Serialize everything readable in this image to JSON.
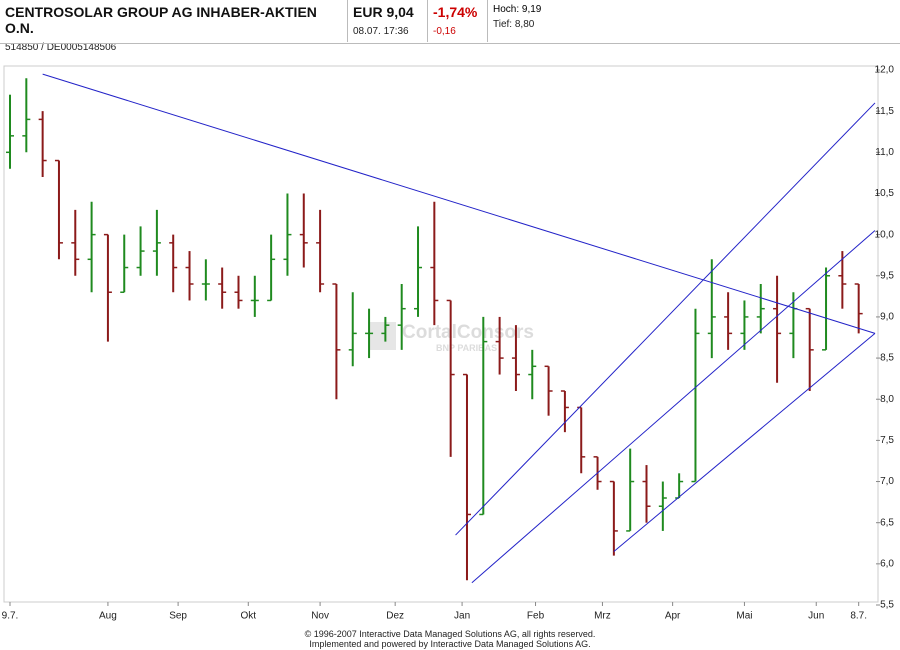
{
  "header": {
    "name": "CENTROSOLAR GROUP AG INHABER-AKTIEN O.N.",
    "ids": "514850  /  DE0005148506",
    "price": "EUR 9,04",
    "time": "08.07. 17:36",
    "change_pct": "-1,74%",
    "change": "-0,16",
    "high": "Hoch: 9,19",
    "low": "Tief: 8,80"
  },
  "watermark": {
    "brand": "CortalConsors",
    "sub": "BNP PARIBAS"
  },
  "footer": {
    "line1": "© 1996-2007 Interactive Data Managed Solutions AG, all rights reserved.",
    "line2": "Implemented and powered by Interactive Data Managed Solutions AG."
  },
  "chart_data": {
    "type": "ohlc",
    "x": [
      0,
      1,
      2,
      3,
      4,
      5,
      6,
      7,
      8,
      9,
      10,
      11,
      12,
      13,
      14,
      15,
      16,
      17,
      18,
      19,
      20,
      21,
      22,
      23,
      24,
      25,
      26,
      27,
      28,
      29,
      30,
      31,
      32,
      33,
      34,
      35,
      36,
      37,
      38,
      39,
      40,
      41,
      42,
      43,
      44,
      45,
      46,
      47,
      48,
      49,
      50,
      51,
      52
    ],
    "open": [
      11.0,
      11.2,
      11.4,
      10.9,
      9.9,
      9.7,
      10.0,
      9.3,
      9.6,
      9.8,
      9.9,
      9.6,
      9.4,
      9.4,
      9.3,
      9.2,
      9.2,
      9.7,
      10.0,
      9.9,
      9.4,
      8.6,
      8.8,
      8.8,
      8.9,
      9.1,
      9.6,
      9.2,
      8.3,
      6.6,
      8.7,
      8.5,
      8.3,
      8.4,
      8.1,
      7.9,
      7.3,
      7.0,
      6.4,
      7.0,
      6.7,
      6.8,
      7.0,
      8.8,
      9.0,
      8.8,
      9.0,
      9.1,
      8.8,
      9.1,
      8.6,
      9.5,
      9.4
    ],
    "high": [
      11.7,
      11.9,
      11.5,
      10.9,
      10.3,
      10.4,
      10.0,
      10.0,
      10.1,
      10.3,
      10.0,
      9.8,
      9.7,
      9.6,
      9.5,
      9.5,
      10.0,
      10.5,
      10.5,
      10.3,
      9.4,
      9.3,
      9.1,
      9.0,
      9.4,
      10.1,
      10.4,
      9.2,
      8.3,
      9.0,
      9.0,
      8.9,
      8.6,
      8.4,
      8.1,
      7.9,
      7.3,
      7.0,
      7.4,
      7.2,
      7.0,
      7.1,
      9.1,
      9.7,
      9.3,
      9.2,
      9.4,
      9.5,
      9.3,
      9.1,
      9.6,
      9.8,
      9.4
    ],
    "low": [
      10.8,
      11.0,
      10.7,
      9.7,
      9.5,
      9.3,
      8.7,
      9.3,
      9.5,
      9.5,
      9.3,
      9.2,
      9.2,
      9.1,
      9.1,
      9.0,
      9.2,
      9.5,
      9.6,
      9.3,
      8.0,
      8.4,
      8.5,
      8.7,
      8.6,
      9.0,
      8.9,
      7.3,
      5.8,
      6.6,
      8.3,
      8.1,
      8.0,
      7.8,
      7.6,
      7.1,
      6.9,
      6.1,
      6.4,
      6.5,
      6.4,
      6.8,
      7.0,
      8.5,
      8.6,
      8.6,
      8.8,
      8.2,
      8.5,
      8.1,
      8.6,
      9.1,
      8.8
    ],
    "close": [
      11.2,
      11.4,
      10.9,
      9.9,
      9.7,
      10.0,
      9.3,
      9.6,
      9.8,
      9.9,
      9.6,
      9.4,
      9.4,
      9.3,
      9.2,
      9.2,
      9.7,
      10.0,
      9.9,
      9.4,
      8.6,
      8.8,
      8.8,
      8.9,
      9.1,
      9.6,
      9.2,
      8.3,
      6.6,
      8.7,
      8.5,
      8.3,
      8.4,
      8.1,
      7.9,
      7.3,
      7.0,
      6.4,
      7.0,
      6.7,
      6.8,
      7.0,
      8.8,
      9.0,
      8.8,
      9.0,
      9.1,
      8.8,
      9.1,
      8.6,
      9.5,
      9.4,
      9.04
    ],
    "color_up": "#1f8a1f",
    "color_down": "#8b1a1a",
    "line_color": "#2323c8",
    "trend_lines": [
      {
        "x": [
          2,
          53
        ],
        "y": [
          11.95,
          8.8
        ]
      },
      {
        "x": [
          28.3,
          53
        ],
        "y": [
          5.77,
          10.05
        ]
      },
      {
        "x": [
          27.3,
          53
        ],
        "y": [
          6.35,
          11.6
        ]
      },
      {
        "x": [
          37,
          53
        ],
        "y": [
          6.15,
          8.8
        ]
      }
    ],
    "xlim": [
      0,
      53
    ],
    "ylim": [
      5.5,
      12.0
    ],
    "xticks": [
      {
        "value": 0,
        "label": "9.7."
      },
      {
        "value": 6.0,
        "label": "Aug"
      },
      {
        "value": 10.3,
        "label": "Sep"
      },
      {
        "value": 14.6,
        "label": "Okt"
      },
      {
        "value": 19.0,
        "label": "Nov"
      },
      {
        "value": 23.6,
        "label": "Dez"
      },
      {
        "value": 27.7,
        "label": "Jan"
      },
      {
        "value": 32.2,
        "label": "Feb"
      },
      {
        "value": 36.3,
        "label": "Mrz"
      },
      {
        "value": 40.6,
        "label": "Apr"
      },
      {
        "value": 45.0,
        "label": "Mai"
      },
      {
        "value": 49.4,
        "label": "Jun"
      },
      {
        "value": 52,
        "label": "8.7."
      }
    ],
    "yticks": [
      {
        "value": 5.5,
        "label": "5,5"
      },
      {
        "value": 6.0,
        "label": "6,0"
      },
      {
        "value": 6.5,
        "label": "6,5"
      },
      {
        "value": 7.0,
        "label": "7,0"
      },
      {
        "value": 7.5,
        "label": "7,5"
      },
      {
        "value": 8.0,
        "label": "8,0"
      },
      {
        "value": 8.5,
        "label": "8,5"
      },
      {
        "value": 9.0,
        "label": "9,0"
      },
      {
        "value": 9.5,
        "label": "9,5"
      },
      {
        "value": 10.0,
        "label": "10,0"
      },
      {
        "value": 10.5,
        "label": "10,5"
      },
      {
        "value": 11.0,
        "label": "11,0"
      },
      {
        "value": 11.5,
        "label": "11,5"
      },
      {
        "value": 12.0,
        "label": "12,0"
      }
    ]
  }
}
